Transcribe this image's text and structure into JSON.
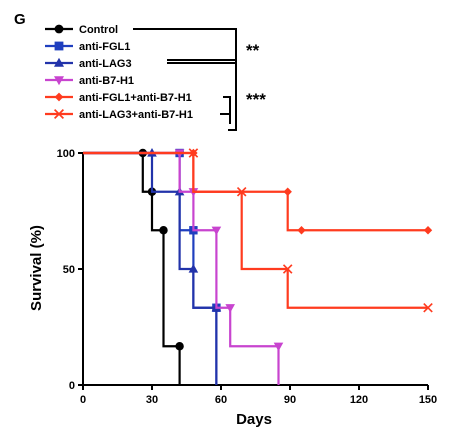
{
  "panel_label": "G",
  "chart_data": {
    "type": "line",
    "subtype": "kaplan-meier step survival",
    "title": "",
    "xlabel": "Days",
    "ylabel": "Survival (%)",
    "xlim": [
      0,
      150
    ],
    "ylim": [
      0,
      100
    ],
    "xticks": [
      0,
      30,
      60,
      90,
      120,
      150
    ],
    "yticks": [
      0,
      50,
      100
    ],
    "grid": false,
    "legend": "top-left",
    "series": [
      {
        "name": "Control",
        "color": "#000000",
        "marker": "circle",
        "steps": [
          [
            0,
            100
          ],
          [
            26,
            83.3
          ],
          [
            30,
            66.7
          ],
          [
            35,
            16.7
          ],
          [
            42,
            0
          ]
        ],
        "censor_marks": []
      },
      {
        "name": "anti-FGL1",
        "color": "#1f3fbf",
        "marker": "square",
        "steps": [
          [
            0,
            100
          ],
          [
            42,
            66.7
          ],
          [
            48,
            33.3
          ],
          [
            58,
            0
          ]
        ],
        "censor_marks": []
      },
      {
        "name": "anti-LAG3",
        "color": "#2233aa",
        "marker": "triangle-up",
        "steps": [
          [
            0,
            100
          ],
          [
            30,
            83.3
          ],
          [
            42,
            50
          ],
          [
            48,
            33.3
          ],
          [
            58,
            0
          ]
        ],
        "censor_marks": []
      },
      {
        "name": "anti-B7-H1",
        "color": "#c844cf",
        "marker": "triangle-down",
        "steps": [
          [
            0,
            100
          ],
          [
            42,
            83.3
          ],
          [
            48,
            66.7
          ],
          [
            58,
            33.3
          ],
          [
            64,
            16.7
          ],
          [
            85,
            0
          ]
        ],
        "censor_marks": []
      },
      {
        "name": "anti-FGL1+anti-B7-H1",
        "color": "#ff3b1f",
        "marker": "diamond",
        "steps": [
          [
            0,
            100
          ],
          [
            48,
            83.3
          ],
          [
            89,
            66.7
          ]
        ],
        "end_x": 150,
        "censor_marks": [
          [
            95,
            66.7
          ],
          [
            150,
            66.7
          ]
        ]
      },
      {
        "name": "anti-LAG3+anti-B7-H1",
        "color": "#ff3b1f",
        "marker": "x",
        "steps": [
          [
            0,
            100
          ],
          [
            48,
            83.3
          ],
          [
            69,
            50
          ],
          [
            89,
            33.3
          ]
        ],
        "end_x": 150,
        "censor_marks": [
          [
            150,
            33.3
          ]
        ]
      }
    ],
    "annotations": [
      {
        "text": "**",
        "between": [
          "Control",
          "anti-LAG3"
        ]
      },
      {
        "text": "***",
        "between": [
          "anti-LAG3",
          "anti-LAG3+anti-B7-H1"
        ]
      }
    ]
  }
}
